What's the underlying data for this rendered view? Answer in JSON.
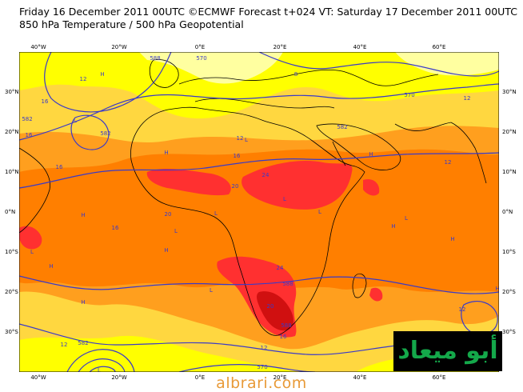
{
  "header": {
    "line1": "Friday 16 December 2011 00UTC ©ECMWF Forecast t+024 VT: Saturday 17 December 2011 00UTC",
    "line2": "850 hPa Temperature / 500 hPa Geopotential"
  },
  "axes": {
    "lat_ticks": [
      "30°N",
      "20°N",
      "10°N",
      "0°N",
      "10°S",
      "20°S",
      "30°S"
    ],
    "lon_ticks": [
      "40°W",
      "20°W",
      "0°E",
      "20°E",
      "40°E",
      "60°E"
    ]
  },
  "contour_labels": {
    "temperature": [
      "12",
      "16",
      "16",
      "20",
      "24",
      "12",
      "16",
      "16",
      "20",
      "12",
      "8",
      "12",
      "16",
      "24",
      "20",
      "12",
      "12",
      "16",
      "12"
    ],
    "geopotential": [
      "588",
      "582",
      "570",
      "582",
      "582",
      "570",
      "588",
      "582",
      "570",
      "588"
    ]
  },
  "pressure_marks": {
    "highs": [
      "H",
      "H",
      "H",
      "H",
      "H",
      "H",
      "H",
      "H",
      "H",
      "H",
      "H"
    ],
    "lows": [
      "L",
      "L",
      "L",
      "L",
      "L",
      "L",
      "L",
      "L",
      "L",
      "L"
    ]
  },
  "colors": {
    "t_lt8": "#ffffa0",
    "t_8_12": "#ffff00",
    "t_12_16": "#ffd740",
    "t_16_20": "#ff9f1e",
    "t_20_24": "#ff7f00",
    "t_24_28": "#ff3030",
    "t_gt28": "#d01010",
    "geopotential_line": "#3a3ac8",
    "coastline": "#000000"
  },
  "logo": {
    "text": "أبو ميعاد",
    "icon": "site-logo-icon"
  },
  "watermark": {
    "text": "albrari.com"
  }
}
